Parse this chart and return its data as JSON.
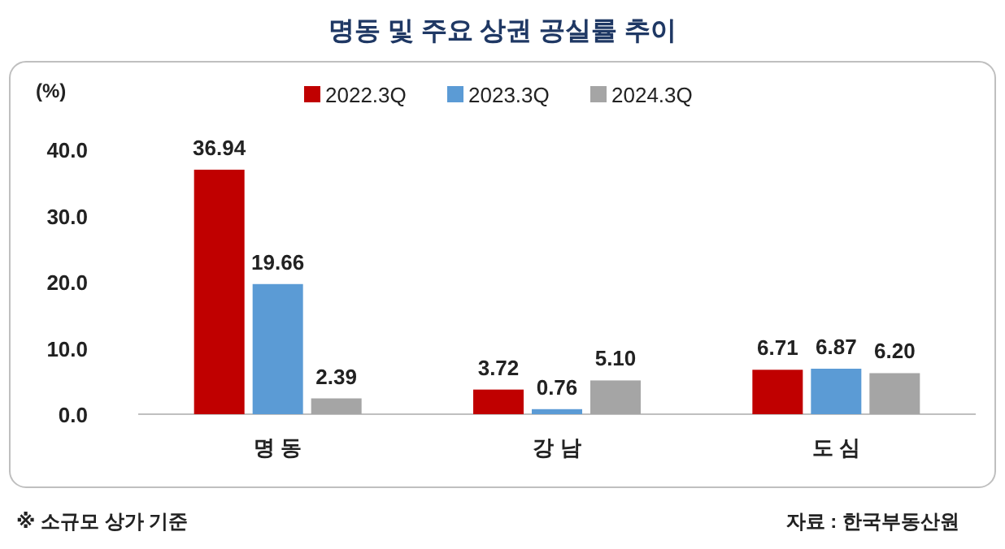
{
  "chart_data": {
    "type": "bar",
    "title": "명동 및 주요 상권 공실률 추이",
    "ylabel": "(%)",
    "categories": [
      "명 동",
      "강 남",
      "도 심"
    ],
    "series": [
      {
        "name": "2022.3Q",
        "color": "#c00000",
        "values": [
          36.94,
          3.72,
          6.71
        ],
        "value_labels": [
          "36.94",
          "3.72",
          "6.71"
        ]
      },
      {
        "name": "2023.3Q",
        "color": "#5b9bd5",
        "values": [
          19.66,
          0.76,
          6.87
        ],
        "value_labels": [
          "19.66",
          "0.76",
          "6.87"
        ]
      },
      {
        "name": "2024.3Q",
        "color": "#a5a5a5",
        "values": [
          2.39,
          5.1,
          6.2
        ],
        "value_labels": [
          "2.39",
          "5.10",
          "6.20"
        ]
      }
    ],
    "ylim": [
      0,
      40
    ],
    "yticks": [
      {
        "value": 0,
        "label": "0.0"
      },
      {
        "value": 10,
        "label": "10.0"
      },
      {
        "value": 20,
        "label": "20.0"
      },
      {
        "value": 30,
        "label": "30.0"
      },
      {
        "value": 40,
        "label": "40.0"
      }
    ],
    "grid": false,
    "legend": "top",
    "annotations": [
      "※ 소규모 상가 기준",
      "자료 : 한국부동산원"
    ]
  }
}
